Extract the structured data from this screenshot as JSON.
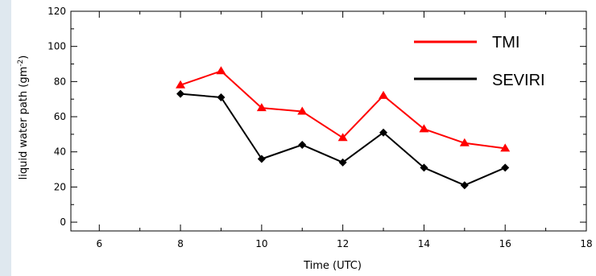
{
  "chart_data": {
    "type": "line",
    "title": "",
    "xlabel": "Time (UTC)",
    "ylabel": "liquid water path (gm",
    "ylabel_sup": "-2",
    "ylabel_close": ")",
    "xlim": [
      5.3,
      18.0
    ],
    "ylim": [
      -5,
      120
    ],
    "x_ticks": [
      6,
      8,
      10,
      12,
      14,
      16,
      18
    ],
    "x_tick_labels": [
      "6",
      "8",
      "10",
      "12",
      "14",
      "16",
      "18"
    ],
    "y_ticks": [
      0,
      20,
      40,
      60,
      80,
      100,
      120
    ],
    "y_tick_labels": [
      "0",
      "20",
      "40",
      "60",
      "80",
      "100",
      "120"
    ],
    "grid": false,
    "legend_position": "top-right",
    "x": [
      8,
      9,
      10,
      11,
      12,
      13,
      14,
      15,
      16
    ],
    "series": [
      {
        "name": "TMI",
        "color": "#ff0000",
        "marker": "triangle",
        "values": [
          78,
          86,
          65,
          63,
          48,
          72,
          53,
          45,
          42
        ]
      },
      {
        "name": "SEVIRI",
        "color": "#000000",
        "marker": "diamond",
        "values": [
          73,
          71,
          36,
          44,
          34,
          51,
          31,
          21,
          31
        ]
      }
    ]
  }
}
